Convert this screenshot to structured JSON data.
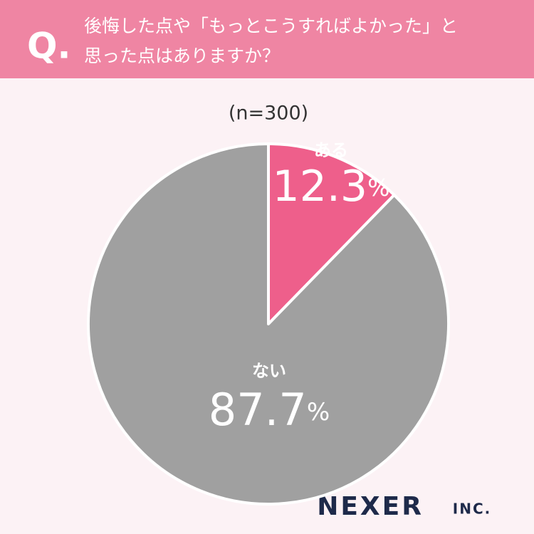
{
  "chart_data": {
    "type": "pie",
    "question_mark": "Q.",
    "title": [
      "後悔した点や「もっとこうすればよかった」と",
      "思った点はありますか？"
    ],
    "subtitle": "(n=300)",
    "categories": [
      "ある",
      "ない"
    ],
    "values": [
      12.3,
      87.7
    ],
    "value_labels": [
      "12.3%",
      "87.7%"
    ],
    "colors": [
      "#ee5f8b",
      "#a0a0a0"
    ],
    "logo": {
      "name": "NEXER",
      "suffix": "INC."
    }
  }
}
